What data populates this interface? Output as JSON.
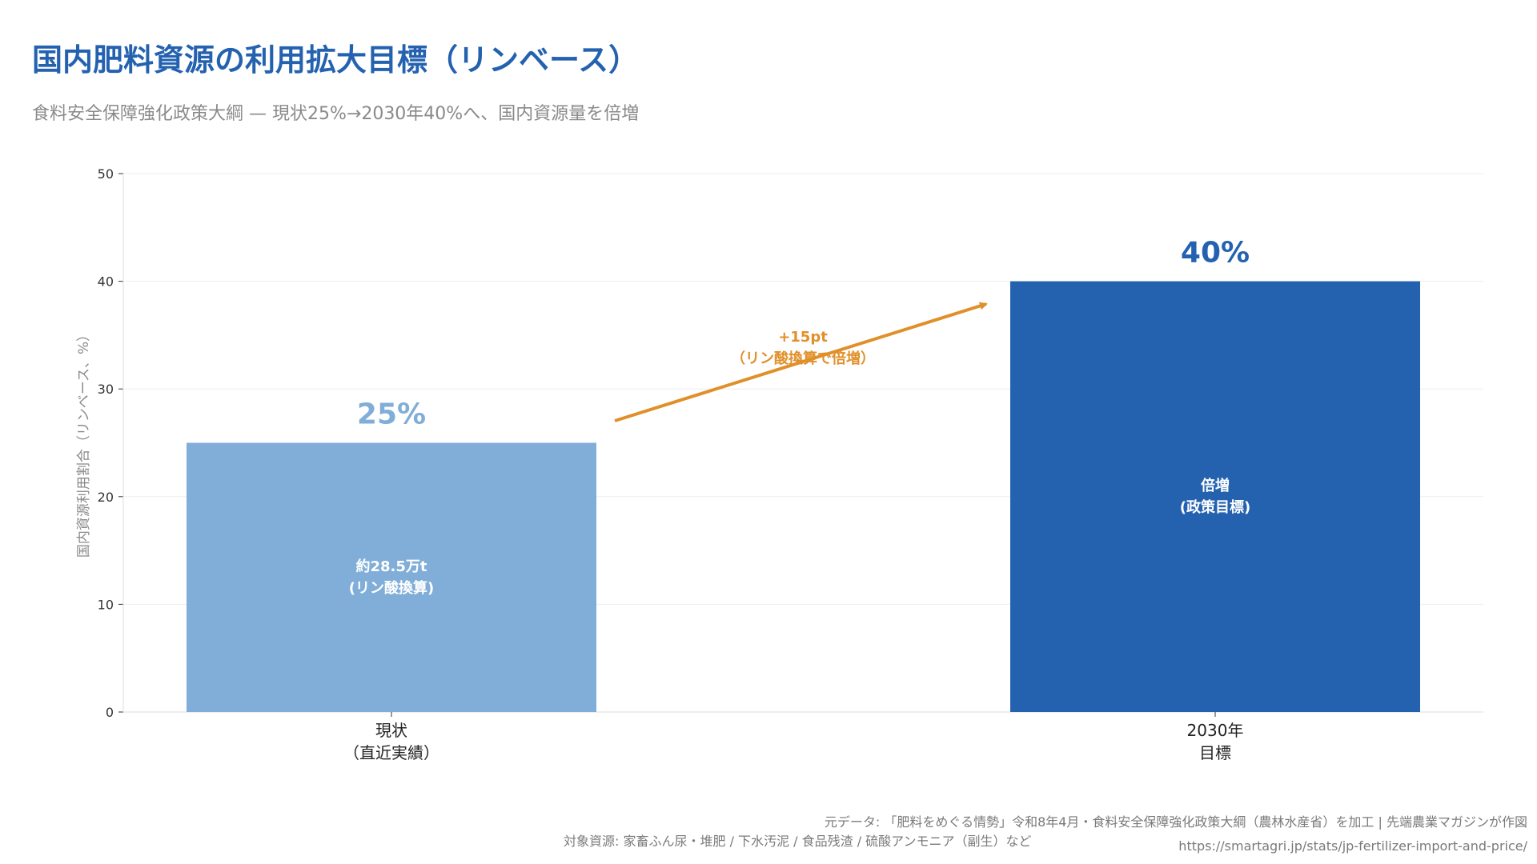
{
  "header": {
    "title": "国内肥料資源の利用拡大目標（リンベース）",
    "subtitle": "食料安全保障強化政策大綱 — 現状25%→2030年40%へ、国内資源量を倍増"
  },
  "chart_data": {
    "type": "bar",
    "categories": [
      [
        "現状",
        "（直近実績）"
      ],
      [
        "2030年",
        "目標"
      ]
    ],
    "values": [
      25,
      40
    ],
    "value_labels": [
      "25%",
      "40%"
    ],
    "bar_inner_labels": [
      [
        "約28.5万t",
        "(リン酸換算)"
      ],
      [
        "倍増",
        "(政策目標)"
      ]
    ],
    "ylabel": "国内資源利用割合（リンベース、%）",
    "ylim": [
      0,
      50
    ],
    "yticks": [
      0,
      10,
      20,
      30,
      40,
      50
    ],
    "grid": true,
    "annotation": {
      "lines": [
        "+15pt",
        "（リン酸換算で倍増）"
      ],
      "color": "#e0902a"
    },
    "colors": [
      "#80aed8",
      "#2462b0"
    ]
  },
  "footer": {
    "source": "元データ: 「肥料をめぐる情勢」令和8年4月・食料安全保障強化政策大綱（農林水産省）を加工 | 先端農業マガジンが作図",
    "note": "対象資源: 家畜ふん尿・堆肥 / 下水汚泥 / 食品残渣 / 硫酸アンモニア（副生）など",
    "url": "https://smartagri.jp/stats/jp-fertilizer-import-and-price/"
  }
}
